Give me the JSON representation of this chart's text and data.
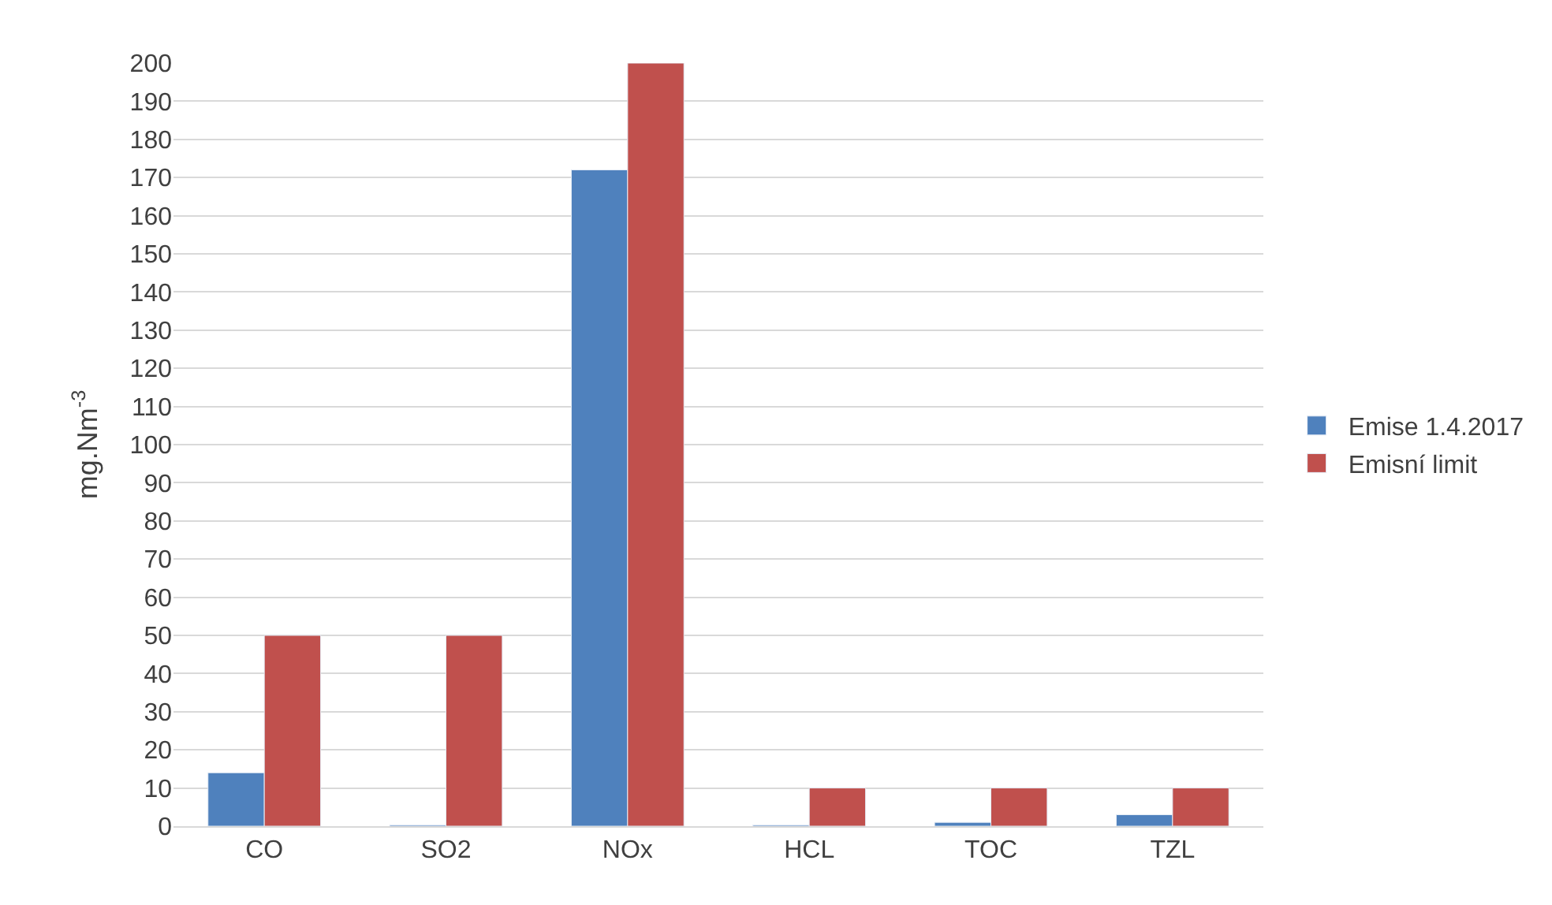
{
  "chart_data": {
    "type": "bar",
    "categories": [
      "CO",
      "SO2",
      "NOx",
      "HCL",
      "TOC",
      "TZL"
    ],
    "series": [
      {
        "name": "Emise 1.4.2017",
        "color": "#4f81bd",
        "values": [
          14,
          0.3,
          172,
          0.3,
          1,
          3
        ]
      },
      {
        "name": "Emisní limit",
        "color": "#c0504d",
        "values": [
          50,
          50,
          200,
          10,
          10,
          10
        ]
      }
    ],
    "ylabel": "mg.Nm$^{-3}$",
    "ylim": [
      0,
      200
    ],
    "yticks": [
      0,
      10,
      20,
      30,
      40,
      50,
      60,
      70,
      80,
      90,
      100,
      110,
      120,
      130,
      140,
      150,
      160,
      170,
      180,
      190,
      200
    ],
    "grid": "y",
    "legend": "right"
  }
}
